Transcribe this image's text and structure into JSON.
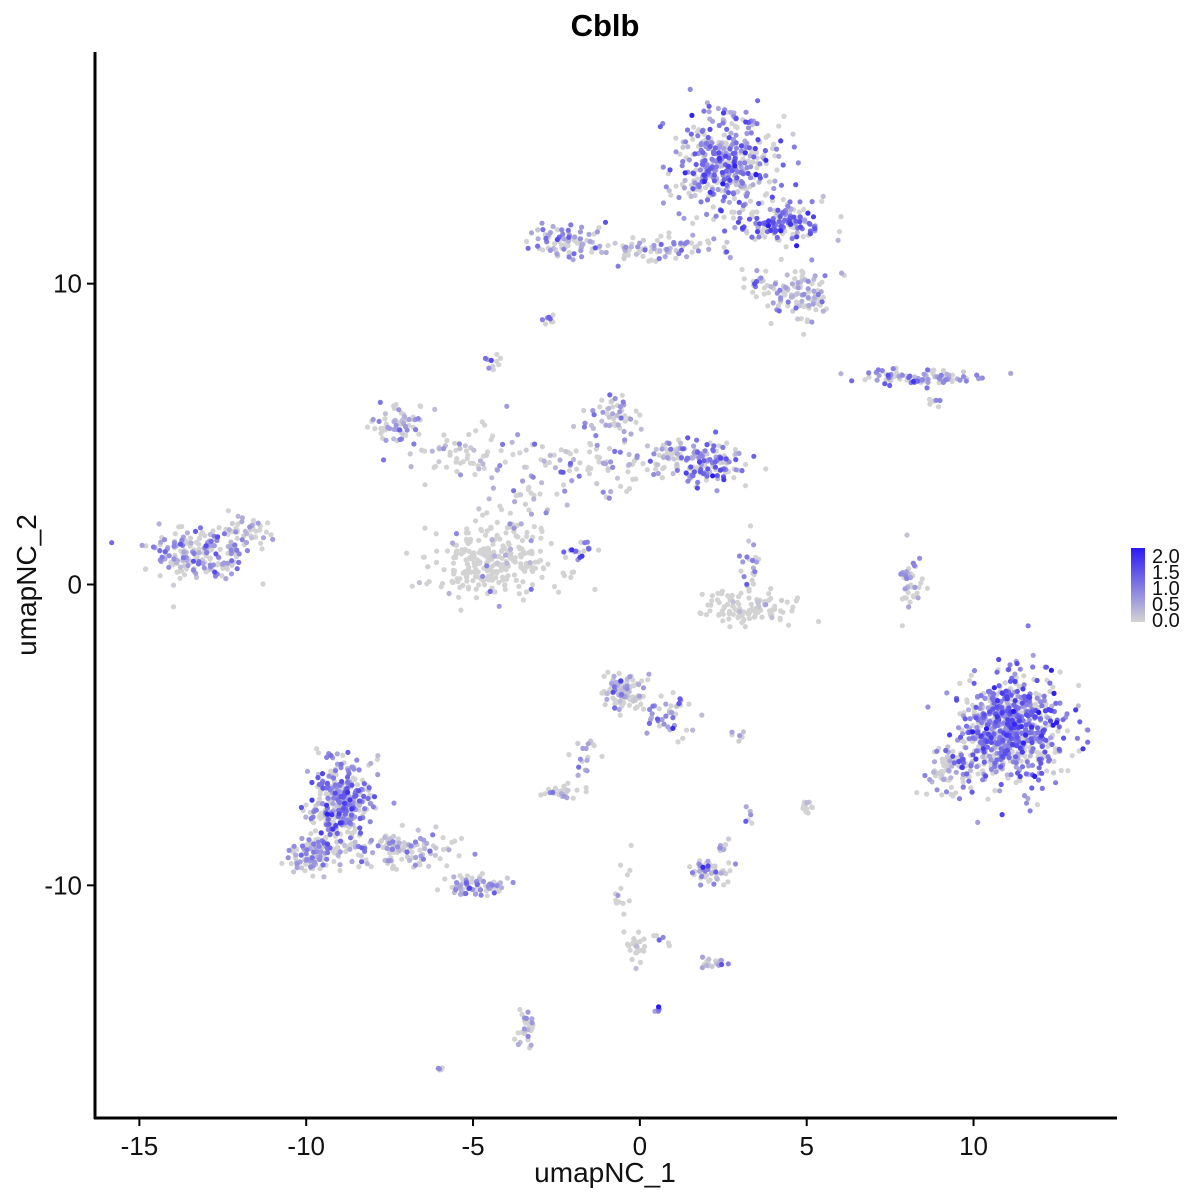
{
  "chart_data": {
    "type": "scatter",
    "title": "Cblb",
    "xlabel": "umapNC_1",
    "ylabel": "umapNC_2",
    "xlim": [
      -16.3,
      14.3
    ],
    "ylim": [
      -17.7,
      17.7
    ],
    "x_ticks": [
      -15,
      -10,
      -5,
      0,
      5,
      10
    ],
    "x_tick_labels": [
      "-15",
      "-10",
      "-5",
      "0",
      "5",
      "10"
    ],
    "y_ticks": [
      -10,
      0,
      10
    ],
    "y_tick_labels": [
      "-10",
      "0",
      "10"
    ],
    "grid": false,
    "legend": {
      "position": "right",
      "type": "colorbar",
      "range": [
        0.0,
        2.0
      ],
      "tick_labels": [
        "2.0",
        "1.5",
        "1.0",
        "0.5",
        "0.0"
      ],
      "low_color": "#D3D3D3",
      "high_color": "#2B1AF5"
    },
    "clusters": [
      {
        "cx": 2.5,
        "cy": 14.0,
        "sx": 1.1,
        "sy": 1.1,
        "n": 420,
        "mean_expr": 0.9
      },
      {
        "cx": 4.3,
        "cy": 12.0,
        "sx": 0.9,
        "sy": 0.4,
        "n": 140,
        "mean_expr": 1.05
      },
      {
        "cx": 4.9,
        "cy": 9.6,
        "sx": 0.7,
        "sy": 0.6,
        "n": 110,
        "mean_expr": 0.25
      },
      {
        "cx": -2.2,
        "cy": 11.4,
        "sx": 0.7,
        "sy": 0.4,
        "n": 80,
        "mean_expr": 0.55
      },
      {
        "cx": 1.0,
        "cy": 11.2,
        "sx": 1.0,
        "sy": 0.3,
        "n": 60,
        "mean_expr": 0.45
      },
      {
        "cx": -0.5,
        "cy": 11.2,
        "sx": 0.6,
        "sy": 0.2,
        "n": 20,
        "mean_expr": 0.3
      },
      {
        "cx": 3.5,
        "cy": 10.0,
        "sx": 0.4,
        "sy": 0.3,
        "n": 20,
        "mean_expr": 0.5
      },
      {
        "cx": -2.8,
        "cy": 8.8,
        "sx": 0.15,
        "sy": 0.15,
        "n": 8,
        "mean_expr": 0.6
      },
      {
        "cx": -4.4,
        "cy": 7.4,
        "sx": 0.15,
        "sy": 0.2,
        "n": 10,
        "mean_expr": 0.6
      },
      {
        "cx": 8.5,
        "cy": 6.9,
        "sx": 1.2,
        "sy": 0.2,
        "n": 90,
        "mean_expr": 0.6
      },
      {
        "cx": 8.8,
        "cy": 6.0,
        "sx": 0.2,
        "sy": 0.2,
        "n": 6,
        "mean_expr": 0.4
      },
      {
        "cx": -7.2,
        "cy": 5.3,
        "sx": 0.5,
        "sy": 0.5,
        "n": 60,
        "mean_expr": 0.35
      },
      {
        "cx": -5.5,
        "cy": 4.2,
        "sx": 1.0,
        "sy": 0.6,
        "n": 60,
        "mean_expr": 0.2
      },
      {
        "cx": -3.5,
        "cy": 3.3,
        "sx": 0.8,
        "sy": 1.2,
        "n": 50,
        "mean_expr": 0.2
      },
      {
        "cx": -1.5,
        "cy": 4.0,
        "sx": 1.0,
        "sy": 0.8,
        "n": 60,
        "mean_expr": 0.3
      },
      {
        "cx": -0.8,
        "cy": 5.6,
        "sx": 0.5,
        "sy": 0.5,
        "n": 50,
        "mean_expr": 0.3
      },
      {
        "cx": 0.8,
        "cy": 4.3,
        "sx": 0.8,
        "sy": 0.4,
        "n": 60,
        "mean_expr": 0.4
      },
      {
        "cx": 2.1,
        "cy": 4.0,
        "sx": 0.6,
        "sy": 0.5,
        "n": 120,
        "mean_expr": 0.95
      },
      {
        "cx": -4.4,
        "cy": 0.8,
        "sx": 1.2,
        "sy": 0.8,
        "n": 280,
        "mean_expr": 0.15
      },
      {
        "cx": -1.8,
        "cy": 1.1,
        "sx": 0.25,
        "sy": 0.25,
        "n": 18,
        "mean_expr": 0.9
      },
      {
        "cx": -13.3,
        "cy": 1.0,
        "sx": 1.0,
        "sy": 0.6,
        "n": 200,
        "mean_expr": 0.55
      },
      {
        "cx": -11.8,
        "cy": 1.8,
        "sx": 0.5,
        "sy": 0.4,
        "n": 40,
        "mean_expr": 0.2
      },
      {
        "cx": 3.3,
        "cy": -0.8,
        "sx": 1.0,
        "sy": 0.35,
        "n": 110,
        "mean_expr": 0.1
      },
      {
        "cx": 3.3,
        "cy": 0.7,
        "sx": 0.3,
        "sy": 0.5,
        "n": 20,
        "mean_expr": 0.5
      },
      {
        "cx": 8.1,
        "cy": 0.0,
        "sx": 0.25,
        "sy": 0.7,
        "n": 40,
        "mean_expr": 0.25
      },
      {
        "cx": 11.1,
        "cy": -4.8,
        "sx": 1.1,
        "sy": 1.2,
        "n": 750,
        "mean_expr": 0.95
      },
      {
        "cx": 9.4,
        "cy": -6.2,
        "sx": 0.5,
        "sy": 0.6,
        "n": 90,
        "mean_expr": 0.3
      },
      {
        "cx": -0.5,
        "cy": -3.6,
        "sx": 0.4,
        "sy": 0.4,
        "n": 110,
        "mean_expr": 0.3
      },
      {
        "cx": 0.8,
        "cy": -4.4,
        "sx": 0.5,
        "sy": 0.5,
        "n": 40,
        "mean_expr": 0.6
      },
      {
        "cx": -1.6,
        "cy": -5.9,
        "sx": 0.3,
        "sy": 0.6,
        "n": 20,
        "mean_expr": 0.3
      },
      {
        "cx": -2.4,
        "cy": -6.9,
        "sx": 0.3,
        "sy": 0.15,
        "n": 30,
        "mean_expr": 0.2
      },
      {
        "cx": 2.9,
        "cy": -5.0,
        "sx": 0.2,
        "sy": 0.1,
        "n": 6,
        "mean_expr": 0.3
      },
      {
        "cx": 5.0,
        "cy": -7.4,
        "sx": 0.1,
        "sy": 0.2,
        "n": 12,
        "mean_expr": 0.4
      },
      {
        "cx": 3.3,
        "cy": -7.7,
        "sx": 0.1,
        "sy": 0.2,
        "n": 6,
        "mean_expr": 0.6
      },
      {
        "cx": -8.9,
        "cy": -7.3,
        "sx": 0.6,
        "sy": 1.0,
        "n": 350,
        "mean_expr": 0.85
      },
      {
        "cx": -9.8,
        "cy": -9.0,
        "sx": 0.5,
        "sy": 0.4,
        "n": 120,
        "mean_expr": 0.55
      },
      {
        "cx": -7.2,
        "cy": -8.8,
        "sx": 1.0,
        "sy": 0.4,
        "n": 120,
        "mean_expr": 0.3
      },
      {
        "cx": -5.0,
        "cy": -10.0,
        "sx": 0.6,
        "sy": 0.3,
        "n": 70,
        "mean_expr": 0.6
      },
      {
        "cx": 2.1,
        "cy": -9.5,
        "sx": 0.4,
        "sy": 0.3,
        "n": 50,
        "mean_expr": 0.3
      },
      {
        "cx": 2.5,
        "cy": -8.7,
        "sx": 0.15,
        "sy": 0.15,
        "n": 8,
        "mean_expr": 0.4
      },
      {
        "cx": -0.1,
        "cy": -12.0,
        "sx": 0.2,
        "sy": 0.3,
        "n": 25,
        "mean_expr": 0.1
      },
      {
        "cx": -0.5,
        "cy": -10.2,
        "sx": 0.2,
        "sy": 0.8,
        "n": 14,
        "mean_expr": 0.15
      },
      {
        "cx": 2.2,
        "cy": -12.6,
        "sx": 0.3,
        "sy": 0.15,
        "n": 20,
        "mean_expr": 0.6
      },
      {
        "cx": 0.7,
        "cy": -11.8,
        "sx": 0.2,
        "sy": 0.15,
        "n": 6,
        "mean_expr": 0.3
      },
      {
        "cx": 0.6,
        "cy": -14.1,
        "sx": 0.08,
        "sy": 0.08,
        "n": 5,
        "mean_expr": 0.7
      },
      {
        "cx": -3.4,
        "cy": -14.8,
        "sx": 0.2,
        "sy": 0.5,
        "n": 30,
        "mean_expr": 0.3
      },
      {
        "cx": -6.0,
        "cy": -16.1,
        "sx": 0.1,
        "sy": 0.05,
        "n": 5,
        "mean_expr": 0.7
      }
    ]
  }
}
